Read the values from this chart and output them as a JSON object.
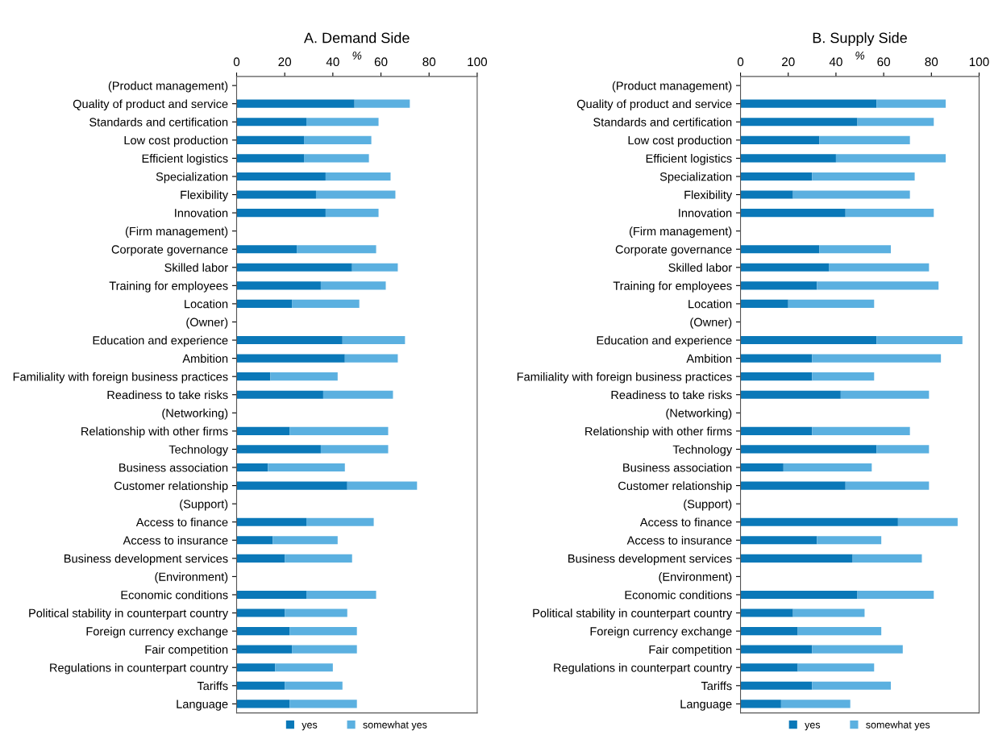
{
  "chart_data": [
    {
      "type": "bar",
      "orientation": "horizontal",
      "stacked": true,
      "title": "A. Demand Side",
      "xlabel": "%",
      "xlim": [
        0,
        100
      ],
      "xticks": [
        0,
        20,
        40,
        60,
        80,
        100
      ],
      "grid": false,
      "legend": "bottom",
      "categories": [
        "(Product management)",
        "Quality of product and service",
        "Standards and certification",
        "Low cost production",
        "Efficient logistics",
        "Specialization",
        "Flexibility",
        "Innovation",
        "(Firm management)",
        "Corporate governance",
        "Skilled labor",
        "Training for employees",
        "Location",
        "(Owner)",
        "Education and experience",
        "Ambition",
        "Familiality with foreign business practices",
        "Readiness to take risks",
        "(Networking)",
        "Relationship with other firms",
        "Technology",
        "Business association",
        "Customer relationship",
        "(Support)",
        "Access to finance",
        "Access to insurance",
        "Business development services",
        "(Environment)",
        "Economic conditions",
        "Political stability in counterpart country",
        "Foreign currency exchange",
        "Fair competition",
        "Regulations in counterpart country",
        "Tariffs",
        "Language"
      ],
      "series": [
        {
          "name": "yes",
          "color": "#0a78b8",
          "values": [
            null,
            49,
            29,
            28,
            28,
            37,
            33,
            37,
            null,
            25,
            48,
            35,
            23,
            null,
            44,
            45,
            14,
            36,
            null,
            22,
            35,
            13,
            46,
            null,
            29,
            15,
            20,
            null,
            29,
            20,
            22,
            23,
            16,
            20,
            22
          ]
        },
        {
          "name": "somewhat yes",
          "color": "#5bb0e0",
          "values": [
            null,
            23,
            30,
            28,
            27,
            27,
            33,
            22,
            null,
            33,
            19,
            27,
            28,
            null,
            26,
            22,
            28,
            29,
            null,
            41,
            28,
            32,
            29,
            null,
            28,
            27,
            28,
            null,
            29,
            26,
            28,
            27,
            24,
            24,
            28
          ]
        }
      ]
    },
    {
      "type": "bar",
      "orientation": "horizontal",
      "stacked": true,
      "title": "B. Supply Side",
      "xlabel": "%",
      "xlim": [
        0,
        100
      ],
      "xticks": [
        0,
        20,
        40,
        60,
        80,
        100
      ],
      "grid": false,
      "legend": "bottom",
      "categories": [
        "(Product management)",
        "Quality of product and service",
        "Standards and certification",
        "Low cost production",
        "Efficient logistics",
        "Specialization",
        "Flexibility",
        "Innovation",
        "(Firm management)",
        "Corporate governance",
        "Skilled labor",
        "Training for employees",
        "Location",
        "(Owner)",
        "Education and experience",
        "Ambition",
        "Familiality with foreign business practices",
        "Readiness to take risks",
        "(Networking)",
        "Relationship with other firms",
        "Technology",
        "Business association",
        "Customer relationship",
        "(Support)",
        "Access to finance",
        "Access to insurance",
        "Business development services",
        "(Environment)",
        "Economic conditions",
        "Political stability in counterpart country",
        "Foreign currency exchange",
        "Fair competition",
        "Regulations in counterpart country",
        "Tariffs",
        "Language"
      ],
      "series": [
        {
          "name": "yes",
          "color": "#0a78b8",
          "values": [
            null,
            57,
            49,
            33,
            40,
            30,
            22,
            44,
            null,
            33,
            37,
            32,
            20,
            null,
            57,
            30,
            30,
            42,
            null,
            30,
            57,
            18,
            44,
            null,
            66,
            32,
            47,
            null,
            49,
            22,
            24,
            30,
            24,
            30,
            17
          ]
        },
        {
          "name": "somewhat yes",
          "color": "#5bb0e0",
          "values": [
            null,
            29,
            32,
            38,
            46,
            43,
            49,
            37,
            null,
            30,
            42,
            51,
            36,
            null,
            36,
            54,
            26,
            37,
            null,
            41,
            22,
            37,
            35,
            null,
            25,
            27,
            29,
            null,
            32,
            30,
            35,
            38,
            32,
            33,
            29
          ]
        }
      ]
    }
  ]
}
